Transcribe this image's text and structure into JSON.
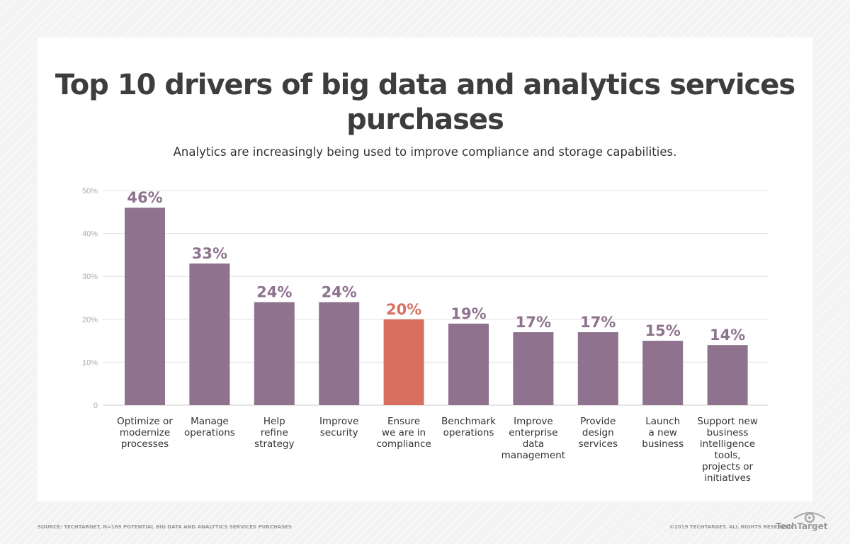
{
  "chart_data": {
    "type": "bar",
    "title": "Top 10 drivers of big data and analytics services purchases",
    "subtitle": "Analytics are increasingly being used to improve compliance and storage capabilities.",
    "categories": [
      [
        "Optimize or",
        "modernize",
        "processes"
      ],
      [
        "Manage",
        "operations"
      ],
      [
        "Help",
        "refine",
        "strategy"
      ],
      [
        "Improve",
        "security"
      ],
      [
        "Ensure",
        "we are in",
        "compliance"
      ],
      [
        "Benchmark",
        "operations"
      ],
      [
        "Improve",
        "enterprise",
        "data",
        "management"
      ],
      [
        "Provide",
        "design",
        "services"
      ],
      [
        "Launch",
        "a new",
        "business"
      ],
      [
        "Support new",
        "business",
        "intelligence",
        "tools,",
        "projects or",
        "initiatives"
      ]
    ],
    "values": [
      46,
      33,
      24,
      24,
      20,
      19,
      17,
      17,
      15,
      14
    ],
    "data_labels": [
      "46%",
      "33%",
      "24%",
      "24%",
      "20%",
      "19%",
      "17%",
      "17%",
      "15%",
      "14%"
    ],
    "highlight_index": 4,
    "yticks": [
      "0",
      "10%",
      "20%",
      "30%",
      "40%",
      "50%"
    ],
    "ylim": [
      0,
      50
    ],
    "grid": true,
    "colors": {
      "bar": "#8e728e",
      "highlight": "#d9705f"
    }
  },
  "footer": {
    "source": "SOURCE: TECHTARGET, N=169 POTENTIAL BIG DATA AND ANALYTICS SERVICES PURCHASES",
    "copyright": "©2019 TECHTARGET. ALL RIGHTS RESERVED",
    "logo": "TechTarget"
  }
}
